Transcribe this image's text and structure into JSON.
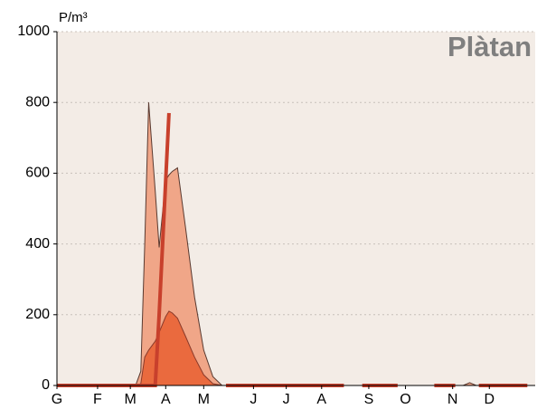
{
  "chart_data": {
    "type": "area",
    "title": "Plàtan",
    "y_label": "P/m³",
    "x": [
      0,
      55,
      60,
      64,
      67,
      70,
      74,
      75,
      78,
      83,
      85.5,
      88,
      92,
      98,
      105,
      112,
      119,
      126,
      129,
      219,
      226,
      233,
      260,
      274,
      288,
      304,
      310,
      315,
      320,
      322,
      359,
      365
    ],
    "series": [
      {
        "type": "area",
        "color": "#f0a688",
        "stroke": "#5a3a30",
        "values": [
          0,
          0,
          0,
          40,
          400,
          800,
          600,
          550,
          390,
          580,
          595,
          605,
          615,
          450,
          250,
          100,
          25,
          0,
          0,
          0,
          0,
          0,
          0,
          0,
          0,
          0,
          0,
          8,
          0,
          0,
          0,
          0
        ]
      },
      {
        "type": "area",
        "color": "#ea6a3e",
        "stroke": "#8a3a2a",
        "values": [
          0,
          0,
          0,
          5,
          80,
          100,
          120,
          125,
          150,
          195,
          210,
          205,
          190,
          140,
          80,
          30,
          5,
          0,
          0,
          0,
          0,
          0,
          0,
          0,
          0,
          0,
          0,
          0,
          0,
          0,
          0,
          0
        ]
      },
      {
        "type": "line",
        "color": "#c8402c",
        "values": [
          0,
          0,
          0,
          0,
          0,
          0,
          0,
          0,
          200,
          580,
          770,
          null,
          null,
          null,
          null,
          null,
          null,
          null,
          0,
          0,
          null,
          0,
          0,
          null,
          0,
          0,
          null,
          null,
          null,
          0,
          0,
          null
        ]
      }
    ],
    "xlim": [
      0,
      365
    ],
    "xticks": [
      {
        "value": 0,
        "label": "G"
      },
      {
        "value": 31,
        "label": "F"
      },
      {
        "value": 56,
        "label": "M"
      },
      {
        "value": 83,
        "label": "A"
      },
      {
        "value": 112,
        "label": "M"
      },
      {
        "value": 150,
        "label": "J"
      },
      {
        "value": 175,
        "label": "J"
      },
      {
        "value": 202,
        "label": "A"
      },
      {
        "value": 238,
        "label": "S"
      },
      {
        "value": 266,
        "label": "O"
      },
      {
        "value": 302,
        "label": "N"
      },
      {
        "value": 330,
        "label": "D"
      }
    ],
    "ylim": [
      0,
      1000
    ],
    "yticks": [
      0,
      200,
      400,
      600,
      800,
      1000
    ],
    "grid": true,
    "background": "#f3ece6"
  }
}
